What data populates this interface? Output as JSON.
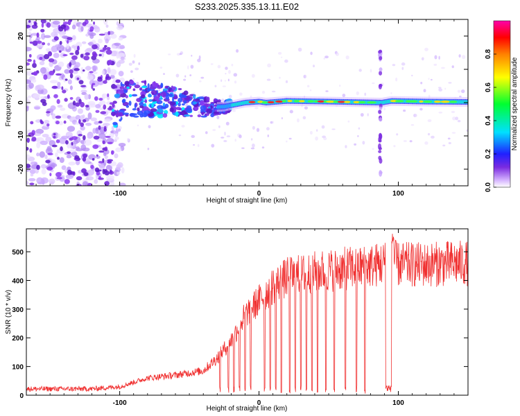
{
  "title": "S233.2025.335.13.11.E02",
  "colors": {
    "snr_line": "#f03030",
    "spec_low": "#7a2be0",
    "frame": "#000000"
  },
  "chart_data": [
    {
      "type": "heatmap",
      "xlabel": "Height of straight line (km)",
      "ylabel": "Frequency (Hz)",
      "xlim": [
        -167,
        150
      ],
      "ylim": [
        -25,
        25
      ],
      "x_ticks": [
        -100,
        0,
        100
      ],
      "x_tick_labels": [
        "-100",
        "0",
        "100"
      ],
      "y_ticks": [
        -20,
        -10,
        0,
        10,
        20
      ],
      "y_tick_labels": [
        "-20",
        "-10",
        "0",
        "10",
        "20"
      ],
      "colorbar": {
        "label": "Normalized spectral amplitude",
        "range": [
          0,
          1
        ],
        "ticks": [
          0.0,
          0.2,
          0.4,
          0.6,
          0.8
        ],
        "tick_labels": [
          "0.0",
          "0.2",
          "0.4",
          "0.6",
          "0.8"
        ],
        "colormap": "rainbow (white-violet-blue-cyan-green-yellow-red-magenta)"
      },
      "features": {
        "noise_region_x": [
          -167,
          -105
        ],
        "scatter_region_x": [
          -105,
          -20
        ],
        "ridge": {
          "x": [
            -100,
            -80,
            -60,
            -40,
            -25,
            -10,
            0,
            5,
            20,
            50,
            88,
            95,
            120,
            150
          ],
          "freq": [
            0,
            1.0,
            0.5,
            -1.5,
            -1.2,
            0,
            0.3,
            0,
            0.5,
            0.3,
            0.0,
            0.5,
            0.3,
            0.2
          ]
        },
        "vertical_streak_x": 87
      }
    },
    {
      "type": "line",
      "xlabel": "Height of straight line (km)",
      "ylabel": "SNR (10 * v/v)",
      "xlim": [
        -167,
        150
      ],
      "ylim": [
        0,
        580
      ],
      "x_ticks": [
        -100,
        0,
        100
      ],
      "x_tick_labels": [
        "-100",
        "0",
        "100"
      ],
      "y_ticks": [
        0,
        100,
        200,
        300,
        400,
        500
      ],
      "y_tick_labels": [
        "0",
        "100",
        "200",
        "300",
        "400",
        "500"
      ],
      "series": [
        {
          "color": "#f03030",
          "envelope_x": [
            -167,
            -120,
            -100,
            -90,
            -80,
            -60,
            -40,
            -30,
            -20,
            -10,
            0,
            10,
            20,
            30,
            40,
            60,
            80,
            90,
            95,
            100,
            120,
            140,
            150
          ],
          "envelope_y": [
            22,
            22,
            30,
            45,
            60,
            70,
            85,
            130,
            190,
            280,
            330,
            380,
            410,
            420,
            430,
            440,
            450,
            460,
            470,
            455,
            455,
            460,
            460
          ],
          "dropouts_x": [
            -28,
            -22,
            -18,
            -14,
            -10,
            -6,
            4,
            8,
            12,
            16,
            22,
            26,
            30,
            34,
            38,
            42,
            48,
            54,
            62,
            70,
            76
          ],
          "gap_x": [
            91,
            96
          ]
        }
      ]
    }
  ]
}
